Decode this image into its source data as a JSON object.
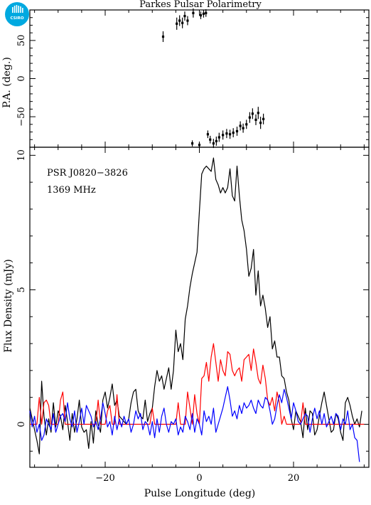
{
  "logo": {
    "text": "CSIRO",
    "color": "#00a9e0"
  },
  "chart_data": [
    {
      "type": "scatter",
      "title": "Parkes Pulsar Polarimetry",
      "xlabel": "",
      "ylabel": "P.A. (deg.)",
      "xlim": [
        -36,
        36
      ],
      "ylim": [
        -90,
        90
      ],
      "yticks": [
        -50,
        0,
        50
      ],
      "grid": false,
      "points": [
        {
          "x": -7.7,
          "y": 55,
          "err": 7
        },
        {
          "x": -4.8,
          "y": 72,
          "err": 8
        },
        {
          "x": -4.2,
          "y": 76,
          "err": 7
        },
        {
          "x": -3.6,
          "y": 73,
          "err": 7
        },
        {
          "x": -3.1,
          "y": 82,
          "err": 6
        },
        {
          "x": -2.5,
          "y": 76,
          "err": 6
        },
        {
          "x": -1.3,
          "y": 86,
          "err": 6
        },
        {
          "x": 0.3,
          "y": 83,
          "err": 5
        },
        {
          "x": 0.9,
          "y": 85,
          "err": 5
        },
        {
          "x": 1.4,
          "y": 86,
          "err": 5
        },
        {
          "x": -1.5,
          "y": -85,
          "err": 4
        },
        {
          "x": 0.0,
          "y": -87,
          "err": 4
        },
        {
          "x": 1.8,
          "y": -73,
          "err": 5
        },
        {
          "x": 2.3,
          "y": -80,
          "err": 5
        },
        {
          "x": 3.0,
          "y": -85,
          "err": 6
        },
        {
          "x": 3.6,
          "y": -82,
          "err": 6
        },
        {
          "x": 4.2,
          "y": -77,
          "err": 6
        },
        {
          "x": 5.0,
          "y": -74,
          "err": 6
        },
        {
          "x": 5.8,
          "y": -72,
          "err": 6
        },
        {
          "x": 6.5,
          "y": -73,
          "err": 6
        },
        {
          "x": 7.2,
          "y": -71,
          "err": 6
        },
        {
          "x": 8.0,
          "y": -69,
          "err": 6
        },
        {
          "x": 8.7,
          "y": -62,
          "err": 6
        },
        {
          "x": 9.3,
          "y": -65,
          "err": 6
        },
        {
          "x": 10.0,
          "y": -60,
          "err": 6
        },
        {
          "x": 10.7,
          "y": -51,
          "err": 7
        },
        {
          "x": 11.3,
          "y": -46,
          "err": 7
        },
        {
          "x": 12.0,
          "y": -54,
          "err": 7
        },
        {
          "x": 12.5,
          "y": -45,
          "err": 8
        },
        {
          "x": 13.0,
          "y": -58,
          "err": 8
        },
        {
          "x": 13.6,
          "y": -53,
          "err": 7
        }
      ]
    },
    {
      "type": "line",
      "title": "",
      "xlabel": "Pulse Longitude (deg)",
      "ylabel": "Flux Density (mJy)",
      "xlim": [
        -36,
        36
      ],
      "ylim": [
        -1.6,
        10.3
      ],
      "xticks": [
        -20,
        0,
        20
      ],
      "yticks": [
        0,
        5,
        10
      ],
      "grid": false,
      "annotations": [
        "PSR J0820−3826",
        "1369 MHz"
      ],
      "x_start": -36,
      "x_step": 0.5,
      "series": [
        {
          "color": "#000000",
          "values": [
            0.6,
            0.2,
            -0.2,
            -0.6,
            -1.1,
            1.6,
            0.3,
            -0.4,
            0.2,
            -0.3,
            0.8,
            -0.1,
            0.5,
            0.3,
            -0.2,
            0.7,
            0.1,
            -0.6,
            0.4,
            -0.3,
            0.2,
            0.9,
            -0.1,
            -0.3,
            -0.2,
            -0.9,
            0.1,
            -0.7,
            0.5,
            0.0,
            -0.3,
            0.9,
            1.2,
            0.6,
            1.0,
            1.5,
            0.7,
            0.9,
            0.3,
            0.2,
            0.1,
            0.0,
            0.2,
            0.8,
            1.2,
            1.3,
            0.5,
            0.3,
            0.2,
            0.9,
            0.1,
            0.4,
            0.6,
            1.4,
            2.0,
            1.6,
            1.8,
            1.3,
            1.7,
            2.1,
            1.3,
            2.0,
            3.5,
            2.7,
            3.0,
            2.4,
            3.9,
            4.4,
            5.1,
            5.6,
            6.0,
            6.4,
            7.9,
            9.3,
            9.5,
            9.6,
            9.5,
            9.4,
            9.9,
            9.1,
            8.9,
            8.6,
            8.8,
            8.6,
            8.8,
            9.5,
            8.5,
            8.3,
            9.6,
            8.5,
            7.6,
            7.2,
            6.5,
            5.5,
            5.8,
            6.5,
            4.8,
            5.7,
            4.4,
            4.8,
            4.3,
            3.6,
            4.0,
            2.8,
            3.1,
            2.5,
            2.5,
            1.8,
            1.7,
            1.2,
            0.9,
            0.2,
            -0.2,
            0.5,
            0.3,
            0.1,
            -0.5,
            0.6,
            -0.2,
            0.5,
            0.4,
            -0.4,
            -0.2,
            0.3,
            0.8,
            1.2,
            0.7,
            0.2,
            -0.3,
            -0.2,
            0.4,
            0.2,
            -0.3,
            -0.6,
            0.8,
            1.0,
            0.7,
            0.3,
            0.0,
            0.2,
            -0.1,
            0.5
          ]
        },
        {
          "color": "#ff0000",
          "values": [
            0.0,
            0.0,
            0.0,
            0.0,
            1.0,
            0.0,
            0.8,
            0.9,
            0.7,
            0.0,
            0.0,
            0.0,
            0.0,
            0.9,
            1.2,
            0.0,
            0.0,
            0.0,
            0.0,
            0.0,
            0.0,
            0.0,
            0.0,
            0.0,
            0.0,
            0.0,
            0.0,
            0.0,
            0.0,
            0.9,
            0.0,
            0.0,
            0.0,
            0.5,
            0.7,
            0.0,
            0.0,
            1.1,
            0.0,
            0.0,
            0.0,
            0.0,
            0.0,
            0.0,
            0.0,
            0.0,
            0.0,
            0.0,
            0.0,
            0.0,
            0.0,
            0.0,
            0.6,
            0.0,
            0.0,
            0.0,
            0.0,
            0.0,
            0.0,
            0.0,
            0.0,
            0.0,
            0.0,
            0.8,
            0.0,
            0.0,
            0.0,
            1.2,
            0.6,
            0.0,
            1.1,
            0.4,
            0.0,
            1.7,
            1.8,
            2.3,
            1.6,
            2.5,
            3.0,
            2.3,
            1.6,
            2.4,
            2.0,
            1.8,
            2.7,
            2.6,
            2.0,
            1.8,
            2.0,
            2.1,
            1.6,
            2.4,
            2.5,
            2.6,
            2.0,
            2.8,
            2.3,
            1.7,
            1.5,
            2.2,
            1.7,
            0.9,
            0.7,
            1.0,
            0.5,
            1.2,
            0.8,
            0.0,
            0.3,
            0.0,
            0.0,
            0.0,
            0.0,
            0.0,
            0.0,
            0.0,
            0.8,
            0.0,
            0.0,
            0.0,
            0.0,
            0.0,
            0.0,
            0.0,
            0.0,
            0.0,
            0.0,
            0.0,
            0.0,
            0.0,
            0.0,
            0.0,
            0.0,
            0.0,
            0.0,
            0.0,
            0.0,
            0.0,
            0.0,
            0.0,
            0.0,
            0.0,
            0.0
          ]
        },
        {
          "color": "#0000ff",
          "values": [
            0.5,
            -0.1,
            0.3,
            -0.3,
            0.0,
            -0.6,
            -0.4,
            0.2,
            0.0,
            -0.2,
            0.4,
            -0.3,
            0.0,
            0.3,
            0.4,
            0.1,
            0.8,
            0.2,
            -0.1,
            0.5,
            -0.3,
            0.1,
            0.6,
            0.0,
            0.7,
            0.5,
            0.3,
            -0.1,
            0.1,
            -0.2,
            0.2,
            0.8,
            0.4,
            -0.1,
            0.1,
            -0.4,
            0.3,
            -0.2,
            0.2,
            -0.1,
            0.3,
            0.0,
            0.2,
            -0.3,
            0.0,
            0.5,
            0.2,
            0.4,
            -0.2,
            0.1,
            0.0,
            -0.4,
            0.1,
            -0.5,
            0.2,
            -0.3,
            0.3,
            0.6,
            0.0,
            -0.3,
            0.1,
            0.0,
            0.2,
            -0.4,
            -0.1,
            -0.3,
            0.3,
            0.1,
            -0.2,
            0.4,
            -0.3,
            0.2,
            0.0,
            -0.4,
            0.5,
            0.1,
            0.3,
            0.0,
            0.6,
            -0.3,
            0.0,
            0.3,
            0.6,
            1.0,
            1.4,
            0.9,
            0.3,
            0.5,
            0.2,
            0.7,
            0.4,
            0.8,
            0.6,
            0.7,
            0.9,
            0.6,
            0.4,
            0.9,
            0.7,
            0.6,
            1.0,
            0.9,
            0.5,
            0.0,
            0.2,
            0.7,
            1.1,
            0.8,
            1.3,
            1.0,
            0.6,
            0.2,
            0.8,
            0.5,
            0.1,
            0.0,
            0.2,
            0.4,
            0.3,
            -0.3,
            0.2,
            0.6,
            0.2,
            0.5,
            0.0,
            0.4,
            -0.1,
            0.1,
            0.3,
            0.0,
            0.4,
            0.3,
            -0.2,
            0.2,
            0.0,
            0.5,
            -0.2,
            0.0,
            -0.5,
            -0.6,
            -1.4
          ]
        }
      ]
    }
  ]
}
